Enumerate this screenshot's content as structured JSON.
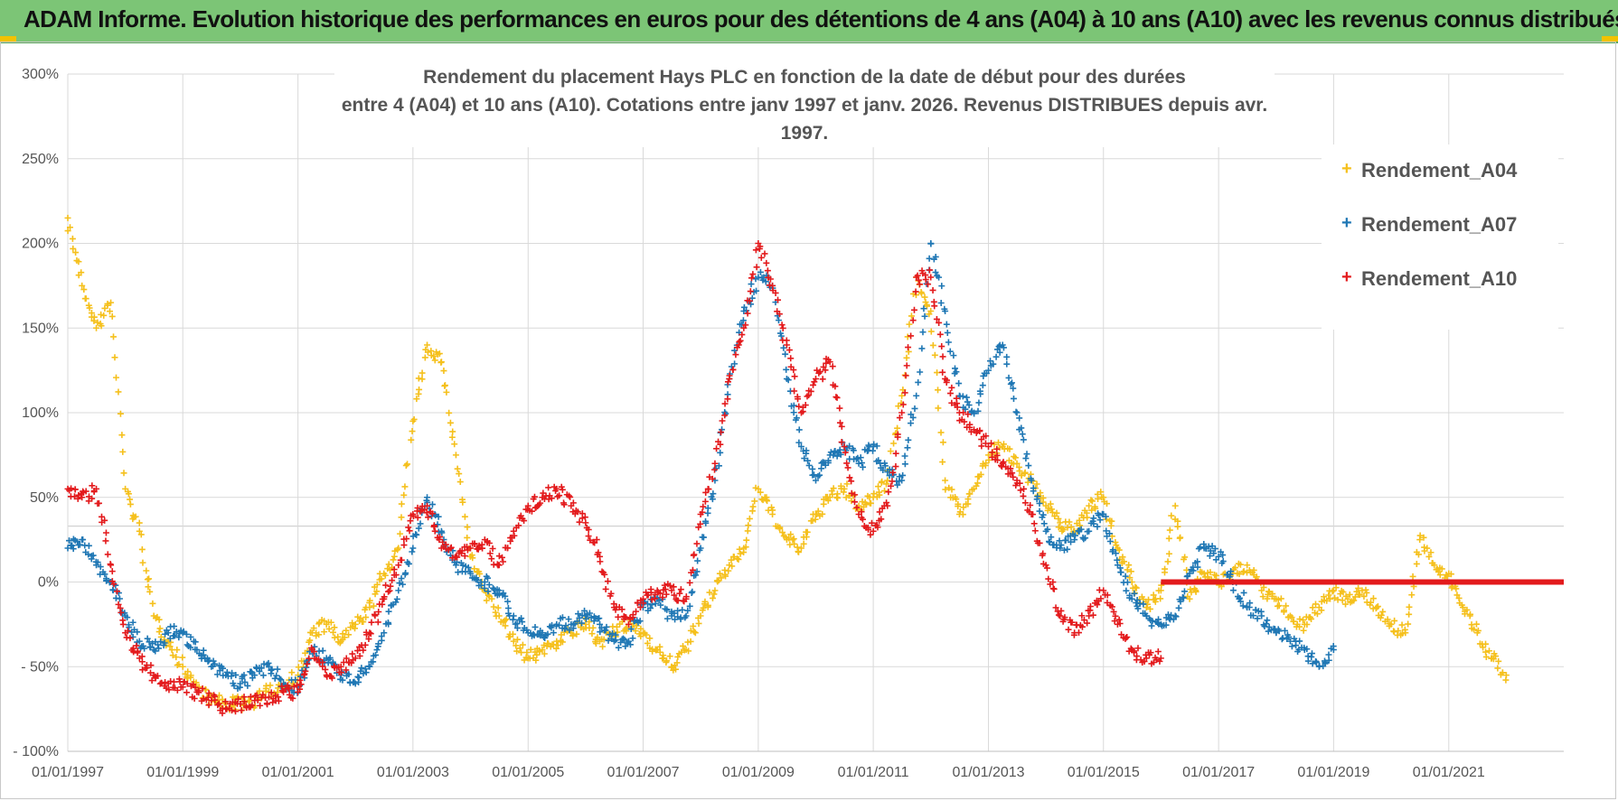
{
  "header": {
    "title": "ADAM Informe. Evolution historique des performances en euros pour des détentions de 4 ans (A04) à 10 ans (A10) avec les revenus connus distribués"
  },
  "chart_data": {
    "type": "scatter",
    "title_line1": "Rendement du placement Hays PLC en fonction de la date de début pour des durées",
    "title_line2": "entre 4 (A04) et 10 ans (A10). Cotations entre janv 1997 et janv. 2026. Revenus DISTRIBUES depuis avr. 1997.",
    "xlabel": "",
    "ylabel": "",
    "xlim": [
      "1997-01-01",
      "2023-01-01"
    ],
    "ylim": [
      -100,
      300
    ],
    "x_tick_labels": [
      "01/01/1997",
      "01/01/1999",
      "01/01/2001",
      "01/01/2003",
      "01/01/2005",
      "01/01/2007",
      "01/01/2009",
      "01/01/2011",
      "01/01/2013",
      "01/01/2015",
      "01/01/2017",
      "01/01/2019",
      "01/01/2021"
    ],
    "y_tick_labels": [
      "300%",
      "250%",
      "200%",
      "150%",
      "100%",
      "50%",
      "0%",
      "- 50%",
      "- 100%"
    ],
    "y_tick_values": [
      300,
      250,
      200,
      150,
      100,
      50,
      0,
      -50,
      -100
    ],
    "grid": true,
    "legend_position": "top-right",
    "marker": "+",
    "series": [
      {
        "name": "Rendement_A04",
        "color": "#f5c01c",
        "x": [
          "1997-01-01",
          "1997-04-01",
          "1997-07-01",
          "1997-10-01",
          "1998-01-01",
          "1998-04-01",
          "1998-07-01",
          "1998-10-01",
          "1999-01-01",
          "1999-04-01",
          "1999-07-01",
          "1999-10-01",
          "2000-01-01",
          "2000-04-01",
          "2000-07-01",
          "2000-10-01",
          "2001-01-01",
          "2001-04-01",
          "2001-07-01",
          "2001-10-01",
          "2002-01-01",
          "2002-04-01",
          "2002-07-01",
          "2002-10-01",
          "2003-01-01",
          "2003-04-01",
          "2003-07-01",
          "2003-10-01",
          "2004-01-01",
          "2004-04-01",
          "2004-07-01",
          "2004-10-01",
          "2005-01-01",
          "2005-04-01",
          "2005-07-01",
          "2005-10-01",
          "2006-01-01",
          "2006-04-01",
          "2006-07-01",
          "2006-10-01",
          "2007-01-01",
          "2007-04-01",
          "2007-07-01",
          "2007-10-01",
          "2008-01-01",
          "2008-04-01",
          "2008-07-01",
          "2008-10-01",
          "2009-01-01",
          "2009-04-01",
          "2009-07-01",
          "2009-10-01",
          "2010-01-01",
          "2010-04-01",
          "2010-07-01",
          "2010-10-01",
          "2011-01-01",
          "2011-04-01",
          "2011-07-01",
          "2011-10-01",
          "2012-01-01",
          "2012-04-01",
          "2012-07-01",
          "2012-10-01",
          "2013-01-01",
          "2013-04-01",
          "2013-07-01",
          "2013-10-01",
          "2014-01-01",
          "2014-04-01",
          "2014-07-01",
          "2014-10-01",
          "2015-01-01",
          "2015-04-01",
          "2015-07-01",
          "2015-10-01",
          "2016-01-01",
          "2016-04-01",
          "2016-07-01",
          "2016-10-01",
          "2017-01-01",
          "2017-04-01",
          "2017-07-01",
          "2017-10-01",
          "2018-01-01",
          "2018-04-01",
          "2018-07-01",
          "2018-10-01",
          "2019-01-01",
          "2019-04-01",
          "2019-07-01",
          "2019-10-01",
          "2020-01-01",
          "2020-04-01",
          "2020-07-01",
          "2020-10-01",
          "2021-01-01",
          "2021-04-01",
          "2021-07-01",
          "2021-10-01",
          "2022-01-01"
        ],
        "y": [
          215,
          175,
          150,
          165,
          55,
          30,
          -20,
          -35,
          -50,
          -62,
          -70,
          -72,
          -72,
          -70,
          -65,
          -60,
          -55,
          -30,
          -25,
          -35,
          -25,
          -15,
          5,
          20,
          95,
          140,
          130,
          75,
          15,
          -5,
          -20,
          -35,
          -45,
          -40,
          -35,
          -30,
          -25,
          -35,
          -30,
          -25,
          -30,
          -40,
          -50,
          -40,
          -20,
          -5,
          10,
          20,
          55,
          40,
          25,
          20,
          40,
          50,
          55,
          45,
          50,
          60,
          110,
          180,
          160,
          60,
          40,
          55,
          75,
          80,
          70,
          60,
          45,
          35,
          30,
          45,
          50,
          20,
          0,
          -15,
          -5,
          45,
          -10,
          5,
          0,
          5,
          10,
          -5,
          -10,
          -20,
          -25,
          -15,
          -5,
          -10,
          -5,
          -15,
          -25,
          -30,
          25,
          10,
          5,
          -15,
          -30,
          -45,
          -55
        ]
      },
      {
        "name": "Rendement_A07",
        "color": "#1f77b4",
        "x": [
          "1997-01-01",
          "1997-04-01",
          "1997-07-01",
          "1997-10-01",
          "1998-01-01",
          "1998-04-01",
          "1998-07-01",
          "1998-10-01",
          "1999-01-01",
          "1999-04-01",
          "1999-07-01",
          "1999-10-01",
          "2000-01-01",
          "2000-04-01",
          "2000-07-01",
          "2000-10-01",
          "2001-01-01",
          "2001-04-01",
          "2001-07-01",
          "2001-10-01",
          "2002-01-01",
          "2002-04-01",
          "2002-07-01",
          "2002-10-01",
          "2003-01-01",
          "2003-04-01",
          "2003-07-01",
          "2003-10-01",
          "2004-01-01",
          "2004-04-01",
          "2004-07-01",
          "2004-10-01",
          "2005-01-01",
          "2005-04-01",
          "2005-07-01",
          "2005-10-01",
          "2006-01-01",
          "2006-04-01",
          "2006-07-01",
          "2006-10-01",
          "2007-01-01",
          "2007-04-01",
          "2007-07-01",
          "2007-10-01",
          "2008-01-01",
          "2008-04-01",
          "2008-07-01",
          "2008-10-01",
          "2009-01-01",
          "2009-04-01",
          "2009-07-01",
          "2009-10-01",
          "2010-01-01",
          "2010-04-01",
          "2010-07-01",
          "2010-10-01",
          "2011-01-01",
          "2011-04-01",
          "2011-07-01",
          "2011-10-01",
          "2012-01-01",
          "2012-04-01",
          "2012-07-01",
          "2012-10-01",
          "2013-01-01",
          "2013-04-01",
          "2013-07-01",
          "2013-10-01",
          "2014-01-01",
          "2014-04-01",
          "2014-07-01",
          "2014-10-01",
          "2015-01-01",
          "2015-04-01",
          "2015-07-01",
          "2015-10-01",
          "2016-01-01",
          "2016-04-01",
          "2016-07-01",
          "2016-10-01",
          "2017-01-01",
          "2017-04-01",
          "2017-07-01",
          "2017-10-01",
          "2018-01-01",
          "2018-04-01",
          "2018-07-01",
          "2018-10-01",
          "2019-01-01"
        ],
        "y": [
          20,
          25,
          10,
          0,
          -20,
          -35,
          -40,
          -30,
          -30,
          -40,
          -50,
          -55,
          -60,
          -55,
          -50,
          -60,
          -62,
          -40,
          -45,
          -55,
          -60,
          -50,
          -30,
          -5,
          20,
          50,
          30,
          10,
          5,
          0,
          -5,
          -20,
          -30,
          -30,
          -25,
          -25,
          -20,
          -25,
          -35,
          -35,
          -15,
          -10,
          -20,
          -20,
          20,
          60,
          120,
          160,
          180,
          175,
          120,
          80,
          60,
          75,
          80,
          70,
          80,
          65,
          60,
          110,
          200,
          160,
          110,
          100,
          125,
          140,
          100,
          60,
          30,
          20,
          25,
          30,
          40,
          10,
          -10,
          -20,
          -25,
          -20,
          5,
          20,
          15,
          0,
          -15,
          -20,
          -30,
          -35,
          -40,
          -50,
          -40
        ]
      },
      {
        "name": "Rendement_A10",
        "color": "#e31a1c",
        "x": [
          "1997-01-01",
          "1997-04-01",
          "1997-07-01",
          "1997-10-01",
          "1998-01-01",
          "1998-04-01",
          "1998-07-01",
          "1998-10-01",
          "1999-01-01",
          "1999-04-01",
          "1999-07-01",
          "1999-10-01",
          "2000-01-01",
          "2000-04-01",
          "2000-07-01",
          "2000-10-01",
          "2001-01-01",
          "2001-04-01",
          "2001-07-01",
          "2001-10-01",
          "2002-01-01",
          "2002-04-01",
          "2002-07-01",
          "2002-10-01",
          "2003-01-01",
          "2003-04-01",
          "2003-07-01",
          "2003-10-01",
          "2004-01-01",
          "2004-04-01",
          "2004-07-01",
          "2004-10-01",
          "2005-01-01",
          "2005-04-01",
          "2005-07-01",
          "2005-10-01",
          "2006-01-01",
          "2006-04-01",
          "2006-07-01",
          "2006-10-01",
          "2007-01-01",
          "2007-04-01",
          "2007-07-01",
          "2007-10-01",
          "2008-01-01",
          "2008-04-01",
          "2008-07-01",
          "2008-10-01",
          "2009-01-01",
          "2009-04-01",
          "2009-07-01",
          "2009-10-01",
          "2010-01-01",
          "2010-04-01",
          "2010-07-01",
          "2010-10-01",
          "2011-01-01",
          "2011-04-01",
          "2011-07-01",
          "2011-10-01",
          "2012-01-01",
          "2012-04-01",
          "2012-07-01",
          "2012-10-01",
          "2013-01-01",
          "2013-04-01",
          "2013-07-01",
          "2013-10-01",
          "2014-01-01",
          "2014-04-01",
          "2014-07-01",
          "2014-10-01",
          "2015-01-01",
          "2015-04-01",
          "2015-07-01",
          "2015-10-01",
          "2016-01-01"
        ],
        "y": [
          55,
          50,
          55,
          10,
          -30,
          -45,
          -55,
          -60,
          -62,
          -65,
          -70,
          -75,
          -72,
          -70,
          -68,
          -65,
          -65,
          -40,
          -55,
          -50,
          -45,
          -30,
          -10,
          10,
          40,
          45,
          20,
          15,
          20,
          25,
          10,
          30,
          45,
          50,
          55,
          45,
          35,
          15,
          -15,
          -25,
          -10,
          -5,
          -5,
          -10,
          40,
          70,
          120,
          150,
          200,
          175,
          140,
          100,
          120,
          130,
          80,
          40,
          30,
          45,
          100,
          180,
          180,
          120,
          100,
          90,
          80,
          70,
          60,
          40,
          10,
          -20,
          -30,
          -20,
          -5,
          -25,
          -40,
          -45,
          -45
        ]
      },
      {
        "name": "",
        "color": "#e31a1c",
        "x": [
          "2016-01-01",
          "2023-01-01"
        ],
        "y": [
          0,
          0
        ],
        "style": "flat-band"
      }
    ]
  }
}
